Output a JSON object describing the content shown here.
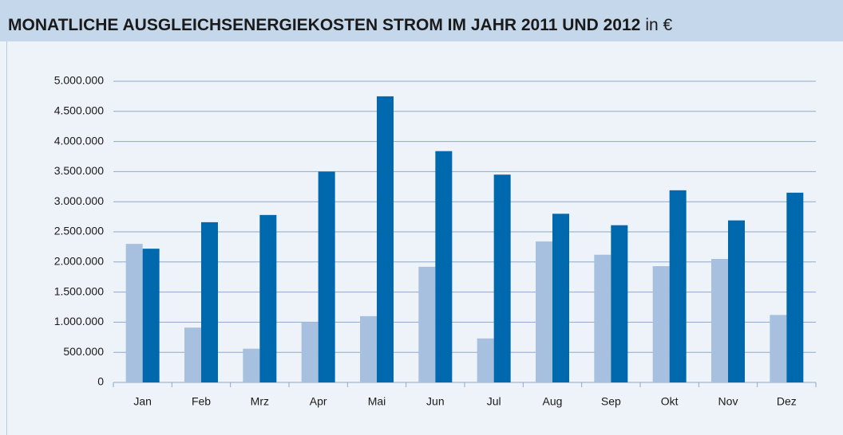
{
  "chart_data": {
    "type": "bar",
    "title": "MONATLICHE AUSGLEICHSENERGIEKOSTEN STROM IM JAHR 2011 UND 2012",
    "subtitle": "in €",
    "categories": [
      "Jan",
      "Feb",
      "Mrz",
      "Apr",
      "Mai",
      "Jun",
      "Jul",
      "Aug",
      "Sep",
      "Okt",
      "Nov",
      "Dez"
    ],
    "series": [
      {
        "color": "#a7c0e0",
        "values": [
          2300000,
          910000,
          560000,
          1000000,
          1100000,
          1920000,
          730000,
          2340000,
          2120000,
          1930000,
          2050000,
          1120000
        ]
      },
      {
        "color": "#0069ad",
        "values": [
          2220000,
          2660000,
          2780000,
          3500000,
          4750000,
          3840000,
          3450000,
          2800000,
          2610000,
          3190000,
          2690000,
          3150000
        ]
      }
    ],
    "ylim": [
      0,
      5000000
    ],
    "yticks": [
      0,
      {
        "value": 500000,
        "label": "500.000"
      },
      {
        "value": 1000000,
        "label": "1.000.000"
      },
      {
        "value": 1500000,
        "label": "1.500.000"
      },
      {
        "value": 2000000,
        "label": "2.000.000"
      },
      {
        "value": 2500000,
        "label": "2.500.000"
      },
      {
        "value": 3000000,
        "label": "3.000.000"
      },
      {
        "value": 3500000,
        "label": "3.500.000"
      },
      {
        "value": 4000000,
        "label": "4.000.000"
      },
      {
        "value": 4500000,
        "label": "4.500.000"
      },
      {
        "value": 5000000,
        "label": "5.000.000"
      }
    ],
    "grid": true
  }
}
